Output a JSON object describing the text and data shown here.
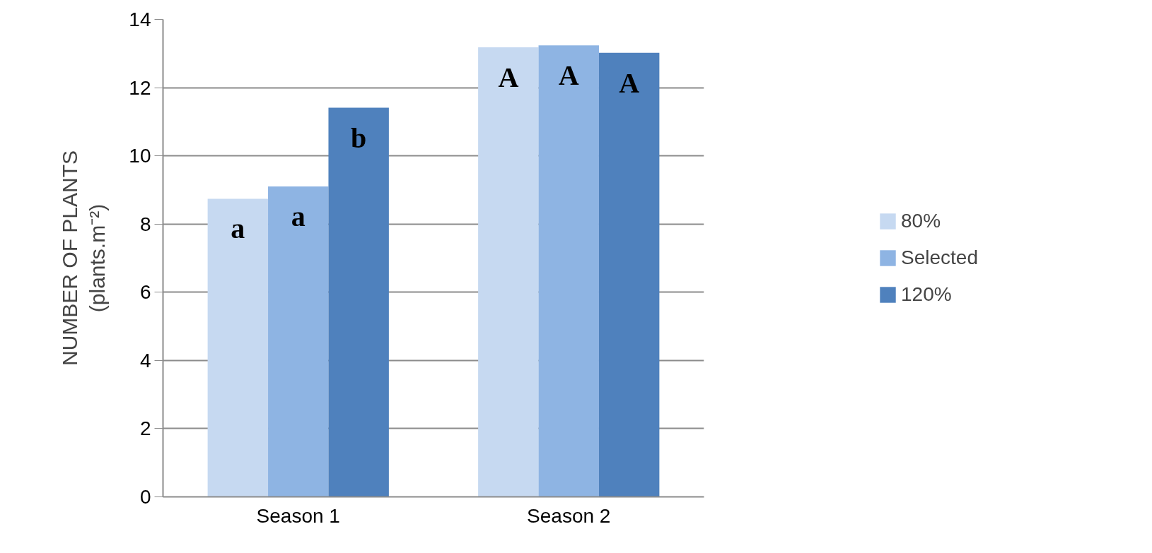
{
  "chart_data": {
    "type": "bar",
    "ylabel": "NUMBER OF PLANTS\n(plants.m⁻²)",
    "categories": [
      "Season 1",
      "Season 2"
    ],
    "series": [
      {
        "name": "80%",
        "color": "#c6d9f1",
        "values": [
          8.74,
          13.18
        ],
        "value_labels": [
          "a",
          "A"
        ]
      },
      {
        "name": "Selected",
        "color": "#8eb4e3",
        "values": [
          9.1,
          13.24
        ],
        "value_labels": [
          "a",
          "A"
        ]
      },
      {
        "name": "120%",
        "color": "#4f81bd",
        "values": [
          11.41,
          13.02
        ],
        "value_labels": [
          "b",
          "A"
        ]
      }
    ],
    "ylim": [
      0,
      14
    ],
    "yticks": [
      0,
      2,
      4,
      6,
      8,
      10,
      12,
      14
    ],
    "grid": "y",
    "legend": "right"
  }
}
